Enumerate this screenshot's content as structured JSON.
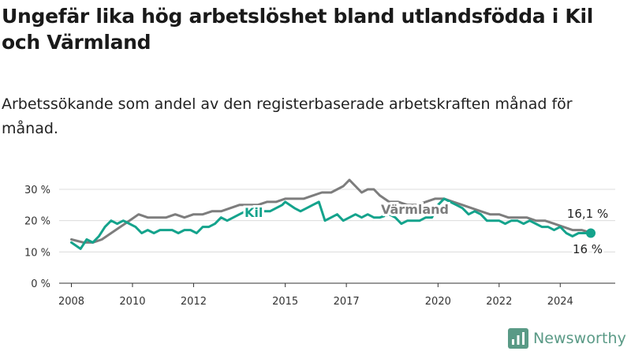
{
  "title": "Ungefär lika hög arbetslöshet bland utlandsfödda i Kil och Värmland",
  "subtitle": "Arbetssökande som andel av den registerbaserade arbetskraften månad för månad.",
  "brand": "Newsworthy",
  "colors": {
    "kil": "#14a38c",
    "varmland": "#7d7d7d",
    "grid": "#dcdcdc",
    "axis": "#333333"
  },
  "chart_data": {
    "type": "line",
    "xlabel": "",
    "ylabel": "",
    "ylim": [
      0,
      30
    ],
    "xlim": [
      2007.6,
      2025.8
    ],
    "y_ticks": [
      0,
      10,
      20,
      30
    ],
    "y_tick_labels": [
      "0 %",
      "10 %",
      "20 %",
      "30 %"
    ],
    "x_ticks": [
      2008,
      2010,
      2012,
      2015,
      2017,
      2020,
      2022,
      2024
    ],
    "x_tick_labels": [
      "2008",
      "2010",
      "2012",
      "2015",
      "2017",
      "2020",
      "2022",
      "2024"
    ],
    "grid": true,
    "series": [
      {
        "name": "Kil",
        "key": "kil",
        "end_label": "16 %",
        "x": [
          2008.0,
          2008.3,
          2008.5,
          2008.7,
          2008.9,
          2009.1,
          2009.3,
          2009.5,
          2009.7,
          2009.9,
          2010.1,
          2010.3,
          2010.5,
          2010.7,
          2010.9,
          2011.1,
          2011.3,
          2011.5,
          2011.7,
          2011.9,
          2012.1,
          2012.3,
          2012.5,
          2012.7,
          2012.9,
          2013.1,
          2013.3,
          2013.5,
          2013.7,
          2013.9,
          2014.1,
          2014.3,
          2014.5,
          2014.7,
          2014.9,
          2015.0,
          2015.3,
          2015.5,
          2015.7,
          2015.9,
          2016.1,
          2016.3,
          2016.5,
          2016.7,
          2016.9,
          2017.1,
          2017.3,
          2017.5,
          2017.7,
          2017.9,
          2018.1,
          2018.4,
          2018.6,
          2018.8,
          2019.0,
          2019.2,
          2019.4,
          2019.6,
          2019.8,
          2020.0,
          2020.2,
          2020.4,
          2020.6,
          2020.8,
          2021.0,
          2021.2,
          2021.4,
          2021.6,
          2021.8,
          2022.0,
          2022.2,
          2022.4,
          2022.6,
          2022.8,
          2023.0,
          2023.2,
          2023.4,
          2023.6,
          2023.8,
          2024.0,
          2024.2,
          2024.4,
          2024.6,
          2024.8,
          2025.0
        ],
        "y": [
          13,
          11,
          14,
          13,
          15,
          18,
          20,
          19,
          20,
          19,
          18,
          16,
          17,
          16,
          17,
          17,
          17,
          16,
          17,
          17,
          16,
          18,
          18,
          19,
          21,
          20,
          21,
          22,
          23,
          24,
          22,
          23,
          23,
          24,
          25,
          26,
          24,
          23,
          24,
          25,
          26,
          20,
          21,
          22,
          20,
          21,
          22,
          21,
          22,
          21,
          21,
          22,
          21,
          19,
          20,
          20,
          20,
          21,
          21,
          25,
          27,
          26,
          25,
          24,
          22,
          23,
          22,
          20,
          20,
          20,
          19,
          20,
          20,
          19,
          20,
          19,
          18,
          18,
          17,
          18,
          16,
          15,
          16,
          16,
          16
        ]
      },
      {
        "name": "Värmland",
        "key": "varmland",
        "end_label": "16,1 %",
        "x": [
          2008.0,
          2008.4,
          2008.7,
          2009.0,
          2009.3,
          2009.6,
          2009.9,
          2010.2,
          2010.5,
          2010.8,
          2011.1,
          2011.4,
          2011.7,
          2012.0,
          2012.3,
          2012.6,
          2012.9,
          2013.2,
          2013.5,
          2013.8,
          2014.1,
          2014.4,
          2014.7,
          2015.0,
          2015.3,
          2015.6,
          2015.9,
          2016.2,
          2016.5,
          2016.7,
          2016.9,
          2017.1,
          2017.3,
          2017.5,
          2017.7,
          2017.9,
          2018.1,
          2018.4,
          2018.7,
          2019.0,
          2019.3,
          2019.6,
          2019.9,
          2020.2,
          2020.5,
          2020.8,
          2021.1,
          2021.4,
          2021.7,
          2022.0,
          2022.3,
          2022.6,
          2022.9,
          2023.2,
          2023.5,
          2023.8,
          2024.1,
          2024.4,
          2024.7,
          2025.0
        ],
        "y": [
          14,
          13,
          13,
          14,
          16,
          18,
          20,
          22,
          21,
          21,
          21,
          22,
          21,
          22,
          22,
          23,
          23,
          24,
          25,
          25,
          25,
          26,
          26,
          27,
          27,
          27,
          28,
          29,
          29,
          30,
          31,
          33,
          31,
          29,
          30,
          30,
          28,
          26,
          26,
          25,
          25,
          26,
          27,
          27,
          26,
          25,
          24,
          23,
          22,
          22,
          21,
          21,
          21,
          20,
          20,
          19,
          18,
          17,
          17,
          16.1
        ]
      }
    ]
  }
}
